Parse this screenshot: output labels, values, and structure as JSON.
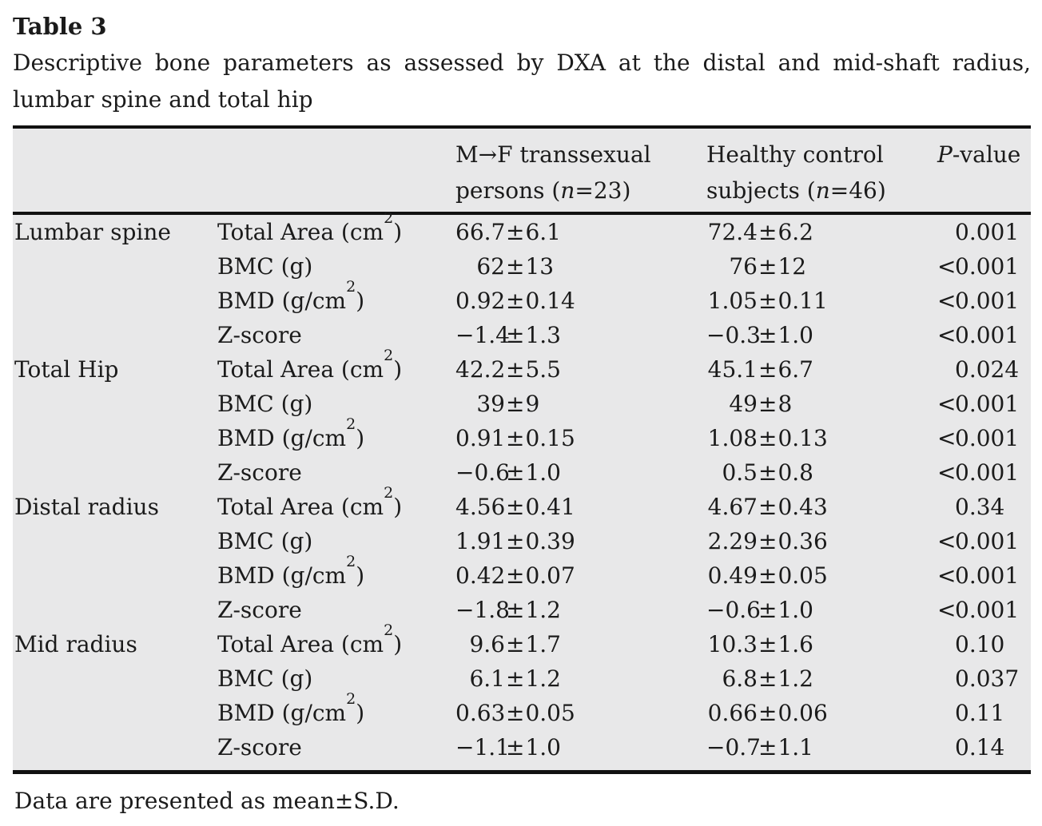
{
  "title": "Table 3",
  "caption_line1": "Descriptive bone parameters as assessed by DXA at the distal and mid-shaft radius,",
  "caption_line2": "lumbar spine and total hip",
  "footnote": "Data are presented as mean±S.D.",
  "symbols": {
    "pm": "±"
  },
  "header": {
    "mf": {
      "line1": "M→F transsexual",
      "line2_pre": "persons (",
      "n": "n",
      "line2_post": "=23)"
    },
    "hc": {
      "line1": "Healthy control",
      "line2_pre": "subjects (",
      "n": "n",
      "line2_post": "=46)"
    },
    "p": {
      "italic": "P",
      "rest": "-value"
    }
  },
  "rows": [
    {
      "region": "Lumbar spine",
      "param_pre": "Total Area (cm",
      "param_sup": "2",
      "param_post": ")",
      "mf_mean": "66.7",
      "mf_sd": "6.1",
      "hc_mean": "72.4",
      "hc_sd": "6.2",
      "p_lt": "",
      "p": "0.001"
    },
    {
      "region": "",
      "param_pre": "BMC (g)",
      "param_sup": "",
      "param_post": "",
      "mf_mean": "62",
      "mf_sd": "13",
      "hc_mean": "76",
      "hc_sd": "12",
      "p_lt": "<",
      "p": "0.001"
    },
    {
      "region": "",
      "param_pre": "BMD (g/cm",
      "param_sup": "2",
      "param_post": ")",
      "mf_mean": "0.92",
      "mf_sd": "0.14",
      "hc_mean": "1.05",
      "hc_sd": "0.11",
      "p_lt": "<",
      "p": "0.001"
    },
    {
      "region": "",
      "param_pre": "Z-score",
      "param_sup": "",
      "param_post": "",
      "mf_mean": "−1.4",
      "mf_sd": "1.3",
      "hc_mean": "−0.3",
      "hc_sd": "1.0",
      "p_lt": "<",
      "p": "0.001"
    },
    {
      "region": "Total Hip",
      "param_pre": "Total Area (cm",
      "param_sup": "2",
      "param_post": ")",
      "mf_mean": "42.2",
      "mf_sd": "5.5",
      "hc_mean": "45.1",
      "hc_sd": "6.7",
      "p_lt": "",
      "p": "0.024"
    },
    {
      "region": "",
      "param_pre": "BMC (g)",
      "param_sup": "",
      "param_post": "",
      "mf_mean": "39",
      "mf_sd": "9",
      "hc_mean": "49",
      "hc_sd": "8",
      "p_lt": "<",
      "p": "0.001"
    },
    {
      "region": "",
      "param_pre": "BMD (g/cm",
      "param_sup": "2",
      "param_post": ")",
      "mf_mean": "0.91",
      "mf_sd": "0.15",
      "hc_mean": "1.08",
      "hc_sd": "0.13",
      "p_lt": "<",
      "p": "0.001"
    },
    {
      "region": "",
      "param_pre": "Z-score",
      "param_sup": "",
      "param_post": "",
      "mf_mean": "−0.6",
      "mf_sd": "1.0",
      "hc_mean": "0.5",
      "hc_sd": "0.8",
      "p_lt": "<",
      "p": "0.001"
    },
    {
      "region": "Distal radius",
      "param_pre": "Total Area (cm",
      "param_sup": "2",
      "param_post": ")",
      "mf_mean": "4.56",
      "mf_sd": "0.41",
      "hc_mean": "4.67",
      "hc_sd": "0.43",
      "p_lt": "",
      "p": "0.34"
    },
    {
      "region": "",
      "param_pre": "BMC (g)",
      "param_sup": "",
      "param_post": "",
      "mf_mean": "1.91",
      "mf_sd": "0.39",
      "hc_mean": "2.29",
      "hc_sd": "0.36",
      "p_lt": "<",
      "p": "0.001"
    },
    {
      "region": "",
      "param_pre": "BMD (g/cm",
      "param_sup": "2",
      "param_post": ")",
      "mf_mean": "0.42",
      "mf_sd": "0.07",
      "hc_mean": "0.49",
      "hc_sd": "0.05",
      "p_lt": "<",
      "p": "0.001"
    },
    {
      "region": "",
      "param_pre": "Z-score",
      "param_sup": "",
      "param_post": "",
      "mf_mean": "−1.8",
      "mf_sd": "1.2",
      "hc_mean": "−0.6",
      "hc_sd": "1.0",
      "p_lt": "<",
      "p": "0.001"
    },
    {
      "region": "Mid radius",
      "param_pre": "Total Area (cm",
      "param_sup": "2",
      "param_post": ")",
      "mf_mean": "9.6",
      "mf_sd": "1.7",
      "hc_mean": "10.3",
      "hc_sd": "1.6",
      "p_lt": "",
      "p": "0.10"
    },
    {
      "region": "",
      "param_pre": "BMC (g)",
      "param_sup": "",
      "param_post": "",
      "mf_mean": "6.1",
      "mf_sd": "1.2",
      "hc_mean": "6.8",
      "hc_sd": "1.2",
      "p_lt": "",
      "p": "0.037"
    },
    {
      "region": "",
      "param_pre": "BMD (g/cm",
      "param_sup": "2",
      "param_post": ")",
      "mf_mean": "0.63",
      "mf_sd": "0.05",
      "hc_mean": "0.66",
      "hc_sd": "0.06",
      "p_lt": "",
      "p": "0.11"
    },
    {
      "region": "",
      "param_pre": "Z-score",
      "param_sup": "",
      "param_post": "",
      "mf_mean": "−1.1",
      "mf_sd": "1.0",
      "hc_mean": "−0.7",
      "hc_sd": "1.1",
      "p_lt": "",
      "p": "0.14"
    }
  ]
}
